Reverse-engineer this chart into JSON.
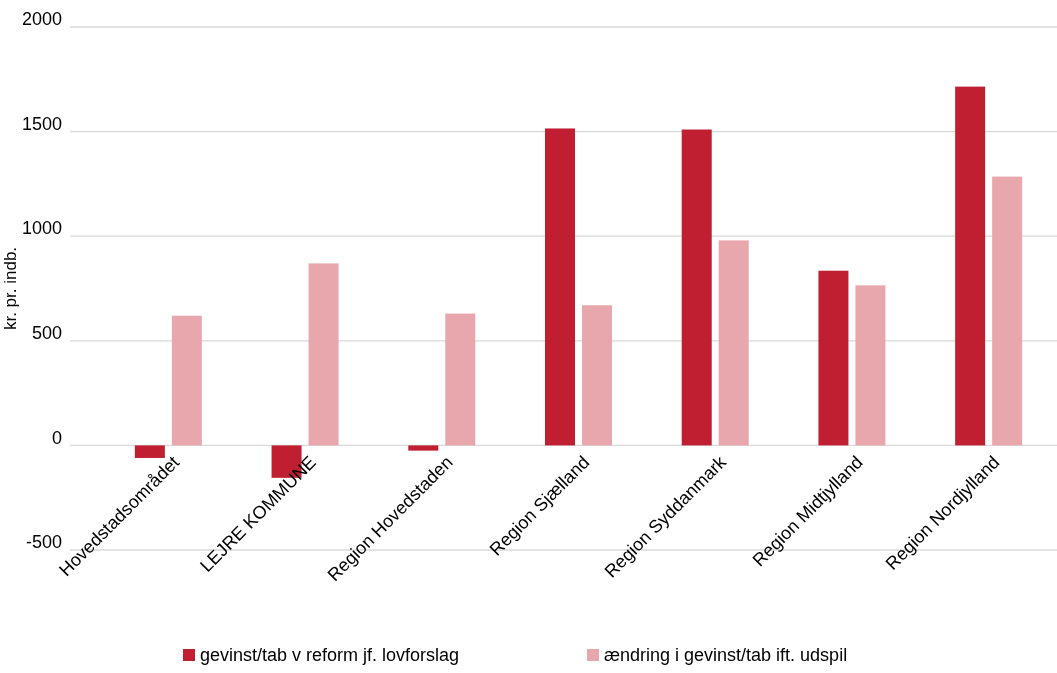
{
  "chart_data": {
    "type": "bar",
    "ylabel": "kr. pr. indb.",
    "categories": [
      "Hovedstadsområdet",
      "LEJRE KOMMUNE",
      "Region Hovedstaden",
      "Region Sjælland",
      "Region Syddanmark",
      "Region Midtjylland",
      "Region Nordjylland"
    ],
    "series": [
      {
        "name": "gevinst/tab v reform jf. lovforslag",
        "color": "#c01f32",
        "values": [
          -60,
          -155,
          -25,
          1515,
          1510,
          835,
          1715
        ]
      },
      {
        "name": "ændring i gevinst/tab ift. udspil",
        "color": "#e8a7ad",
        "values": [
          620,
          870,
          630,
          670,
          980,
          765,
          1285
        ]
      }
    ],
    "ylim": [
      -500,
      2000
    ],
    "yticks": [
      -500,
      0,
      500,
      1000,
      1500,
      2000
    ],
    "grid": "y",
    "legend": "bottom"
  }
}
